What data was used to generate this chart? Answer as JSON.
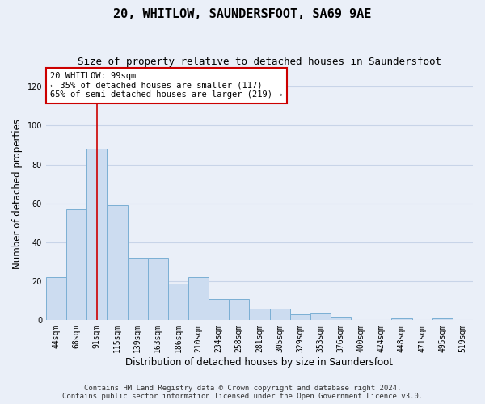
{
  "title": "20, WHITLOW, SAUNDERSFOOT, SA69 9AE",
  "subtitle": "Size of property relative to detached houses in Saundersfoot",
  "xlabel": "Distribution of detached houses by size in Saundersfoot",
  "ylabel": "Number of detached properties",
  "bar_color": "#ccdcf0",
  "bar_edge_color": "#7bafd4",
  "categories": [
    "44sqm",
    "68sqm",
    "91sqm",
    "115sqm",
    "139sqm",
    "163sqm",
    "186sqm",
    "210sqm",
    "234sqm",
    "258sqm",
    "281sqm",
    "305sqm",
    "329sqm",
    "353sqm",
    "376sqm",
    "400sqm",
    "424sqm",
    "448sqm",
    "471sqm",
    "495sqm",
    "519sqm"
  ],
  "values": [
    22,
    57,
    88,
    59,
    32,
    32,
    19,
    22,
    11,
    11,
    6,
    6,
    3,
    4,
    2,
    0,
    0,
    1,
    0,
    1,
    0
  ],
  "ylim": [
    0,
    130
  ],
  "yticks": [
    0,
    20,
    40,
    60,
    80,
    100,
    120
  ],
  "vline_x": 2,
  "vline_color": "#cc0000",
  "annotation_text": "20 WHITLOW: 99sqm\n← 35% of detached houses are smaller (117)\n65% of semi-detached houses are larger (219) →",
  "annotation_box_facecolor": "#ffffff",
  "annotation_box_edge_color": "#cc0000",
  "footer_line1": "Contains HM Land Registry data © Crown copyright and database right 2024.",
  "footer_line2": "Contains public sector information licensed under the Open Government Licence v3.0.",
  "background_color": "#eaeff8",
  "grid_color": "#c8d4e8",
  "title_fontsize": 11,
  "subtitle_fontsize": 9,
  "axis_label_fontsize": 8.5,
  "tick_fontsize": 7,
  "annotation_fontsize": 7.5,
  "footer_fontsize": 6.5
}
